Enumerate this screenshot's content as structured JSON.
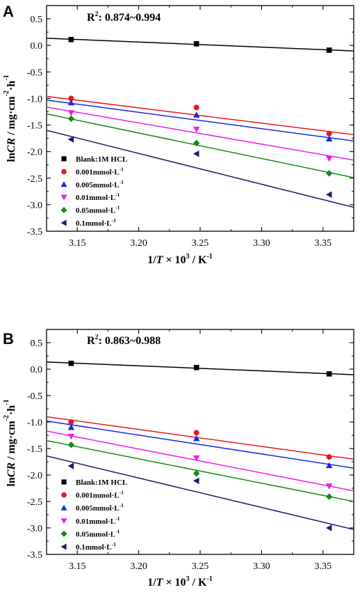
{
  "chart_data": [
    {
      "type": "scatter",
      "panel_label": "A",
      "annotation": "R²: 0.874~0.994",
      "annotation_main": "R",
      "annotation_sup": "2",
      "annotation_rest": ": 0.874~0.994",
      "xlabel": "1/T × 10³ / K⁻¹",
      "xlabel_parts": [
        "1/",
        "T",
        " × 10",
        "3",
        " / K",
        "-1"
      ],
      "ylabel": "lnCR / mg·cm⁻²·h⁻¹",
      "ylabel_parts": [
        "ln",
        "CR",
        " / mg·cm",
        "-2",
        "·h",
        "-1"
      ],
      "xlim": [
        3.125,
        3.375
      ],
      "ylim": [
        -3.5,
        0.75
      ],
      "x_ticks": [
        "3.15",
        "3.20",
        "3.25",
        "3.30",
        "3.35"
      ],
      "y_ticks": [
        "0.5",
        "0.0",
        "-0.5",
        "-1.0",
        "-1.5",
        "-2.0",
        "-2.5",
        "-3.0",
        "-3.5"
      ],
      "grid": false,
      "legend_position": "bottom-left",
      "series": [
        {
          "name": "Blank:1M HCL",
          "name_main": "Blank:1M HCL",
          "name_sup": "",
          "marker": "square",
          "color": "#000000",
          "x": [
            3.145,
            3.247,
            3.355
          ],
          "y": [
            0.11,
            0.03,
            -0.09
          ],
          "fit": [
            [
              3.125,
              0.135
            ],
            [
              3.375,
              -0.105
            ]
          ]
        },
        {
          "name": "0.001mmol·L⁻¹",
          "name_main": "0.001mmol·L",
          "name_sup": "-1",
          "marker": "circle",
          "color": "#e8171f",
          "x": [
            3.145,
            3.247,
            3.355
          ],
          "y": [
            -1.0,
            -1.17,
            -1.66
          ],
          "fit": [
            [
              3.125,
              -0.96
            ],
            [
              3.375,
              -1.68
            ]
          ]
        },
        {
          "name": "0.005mmol·L⁻¹",
          "name_main": "0.005mmol·L",
          "name_sup": "-1",
          "marker": "triangle-up",
          "color": "#1528e0",
          "x": [
            3.145,
            3.247,
            3.355
          ],
          "y": [
            -1.08,
            -1.31,
            -1.76
          ],
          "fit": [
            [
              3.125,
              -1.03
            ],
            [
              3.375,
              -1.8
            ]
          ]
        },
        {
          "name": "0.01mmol·L⁻¹",
          "name_main": "0.01mmol·L",
          "name_sup": "-1",
          "marker": "triangle-down",
          "color": "#ee1bee",
          "x": [
            3.145,
            3.247,
            3.355
          ],
          "y": [
            -1.27,
            -1.58,
            -2.13
          ],
          "fit": [
            [
              3.125,
              -1.16
            ],
            [
              3.375,
              -2.16
            ]
          ]
        },
        {
          "name": "0.05mmol·L⁻¹",
          "name_main": "0.05mmol·L",
          "name_sup": "-1",
          "marker": "diamond",
          "color": "#178a17",
          "x": [
            3.145,
            3.247,
            3.355
          ],
          "y": [
            -1.38,
            -1.84,
            -2.41
          ],
          "fit": [
            [
              3.125,
              -1.29
            ],
            [
              3.375,
              -2.49
            ]
          ]
        },
        {
          "name": "0.1mmol·L⁻¹",
          "name_main": "0.1mmol·L",
          "name_sup": "-1",
          "marker": "triangle-left",
          "color": "#1b1b78",
          "x": [
            3.145,
            3.247,
            3.355
          ],
          "y": [
            -1.77,
            -2.04,
            -2.81
          ],
          "fit": [
            [
              3.125,
              -1.6
            ],
            [
              3.375,
              -3.05
            ]
          ]
        }
      ]
    },
    {
      "type": "scatter",
      "panel_label": "B",
      "annotation": "R²: 0.863~0.988",
      "annotation_main": "R",
      "annotation_sup": "2",
      "annotation_rest": ": 0.863~0.988",
      "xlabel": "1/T × 10³ / K⁻¹",
      "xlabel_parts": [
        "1/",
        "T",
        " × 10",
        "3",
        " / K",
        "-1"
      ],
      "ylabel": "lnCR / mg·cm⁻²·h⁻¹",
      "ylabel_parts": [
        "ln",
        "CR",
        " / mg·cm",
        "-2",
        "·h",
        "-1"
      ],
      "xlim": [
        3.125,
        3.375
      ],
      "ylim": [
        -3.5,
        0.75
      ],
      "x_ticks": [
        "3.15",
        "3.20",
        "3.25",
        "3.30",
        "3.35"
      ],
      "y_ticks": [
        "0.5",
        "0.0",
        "-0.5",
        "-1.0",
        "-1.5",
        "-2.0",
        "-2.5",
        "-3.0",
        "-3.5"
      ],
      "grid": false,
      "legend_position": "bottom-left",
      "series": [
        {
          "name": "Blank:1M HCL",
          "name_main": "Blank:1M HCL",
          "name_sup": "",
          "marker": "square",
          "color": "#000000",
          "x": [
            3.145,
            3.247,
            3.355
          ],
          "y": [
            0.11,
            0.03,
            -0.09
          ],
          "fit": [
            [
              3.125,
              0.135
            ],
            [
              3.375,
              -0.105
            ]
          ]
        },
        {
          "name": "0.001mmol·L⁻¹",
          "name_main": "0.001mmol·L",
          "name_sup": "-1",
          "marker": "circle",
          "color": "#e8171f",
          "x": [
            3.145,
            3.247,
            3.355
          ],
          "y": [
            -1.0,
            -1.2,
            -1.66
          ],
          "fit": [
            [
              3.125,
              -0.9
            ],
            [
              3.375,
              -1.7
            ]
          ]
        },
        {
          "name": "0.005mmol·L⁻¹",
          "name_main": "0.005mmol·L",
          "name_sup": "-1",
          "marker": "triangle-up",
          "color": "#1528e0",
          "x": [
            3.145,
            3.247,
            3.355
          ],
          "y": [
            -1.1,
            -1.31,
            -1.82
          ],
          "fit": [
            [
              3.125,
              -0.98
            ],
            [
              3.375,
              -1.87
            ]
          ]
        },
        {
          "name": "0.01mmol·L⁻¹",
          "name_main": "0.01mmol·L",
          "name_sup": "-1",
          "marker": "triangle-down",
          "color": "#ee1bee",
          "x": [
            3.145,
            3.247,
            3.355
          ],
          "y": [
            -1.27,
            -1.68,
            -2.21
          ],
          "fit": [
            [
              3.125,
              -1.17
            ],
            [
              3.375,
              -2.3
            ]
          ]
        },
        {
          "name": "0.05mmol·L⁻¹",
          "name_main": "0.05mmol·L",
          "name_sup": "-1",
          "marker": "diamond",
          "color": "#178a17",
          "x": [
            3.145,
            3.247,
            3.355
          ],
          "y": [
            -1.43,
            -1.97,
            -2.41
          ],
          "fit": [
            [
              3.125,
              -1.35
            ],
            [
              3.375,
              -2.5
            ]
          ]
        },
        {
          "name": "0.1mmol·L⁻¹",
          "name_main": "0.1mmol·L",
          "name_sup": "-1",
          "marker": "triangle-left",
          "color": "#1b1b78",
          "x": [
            3.145,
            3.247,
            3.355
          ],
          "y": [
            -1.83,
            -2.11,
            -3.0
          ],
          "fit": [
            [
              3.125,
              -1.64
            ],
            [
              3.375,
              -3.03
            ]
          ]
        }
      ]
    }
  ]
}
